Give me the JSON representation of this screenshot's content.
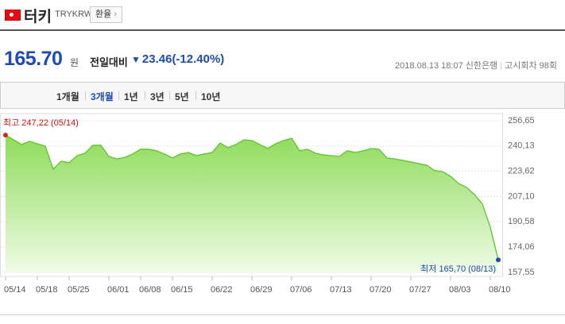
{
  "header": {
    "title": "터키",
    "code": "TRYKRW",
    "button": "환율"
  },
  "quote": {
    "price": "165.70",
    "unit": "원",
    "change_label": "전일대비",
    "change": "23.46",
    "change_pct": "(-12.40%)",
    "date": "2018.08.13 18:07",
    "bank": "신한은행",
    "round": "고시회차 98회"
  },
  "tabs": {
    "items": [
      "1개월",
      "3개월",
      "1년",
      "3년",
      "5년",
      "10년"
    ],
    "active": "3개월"
  },
  "chart_data": {
    "type": "area",
    "color": "#5cc32a",
    "grid": true,
    "categories": [
      "05/14",
      null,
      null,
      null,
      "05/18",
      null,
      null,
      null,
      "05/25",
      null,
      null,
      null,
      null,
      "06/01",
      null,
      null,
      null,
      "06/08",
      null,
      null,
      null,
      "06/15",
      null,
      null,
      null,
      null,
      "06/22",
      null,
      null,
      null,
      null,
      "06/29",
      null,
      null,
      null,
      null,
      "07/06",
      null,
      null,
      null,
      null,
      "07/13",
      null,
      null,
      null,
      null,
      "07/20",
      null,
      null,
      null,
      null,
      "07/27",
      null,
      null,
      null,
      null,
      "08/03",
      null,
      null,
      null,
      null,
      "08/10",
      null
    ],
    "values": [
      247.22,
      244.2,
      241.1,
      243.2,
      241.6,
      240.0,
      225.0,
      230.2,
      229.2,
      233.8,
      235.4,
      240.6,
      240.6,
      233.3,
      231.7,
      232.7,
      234.9,
      238.0,
      238.0,
      237.0,
      234.9,
      232.3,
      234.9,
      235.9,
      233.8,
      234.9,
      235.9,
      242.1,
      239.0,
      241.1,
      244.2,
      243.7,
      241.1,
      238.5,
      241.6,
      243.7,
      245.2,
      237.0,
      238.0,
      235.4,
      234.3,
      233.8,
      233.3,
      237.0,
      235.9,
      237.0,
      238.5,
      238.0,
      232.3,
      231.7,
      230.7,
      229.7,
      228.6,
      227.6,
      224.0,
      223.4,
      220.3,
      215.6,
      213.1,
      208.4,
      202.2,
      187.1,
      165.7
    ],
    "ylim": [
      157.55,
      256.65
    ],
    "yticks": [
      {
        "value": 157.55,
        "label": "157,55"
      },
      {
        "value": 174.06,
        "label": "174,06"
      },
      {
        "value": 190.58,
        "label": "190,58"
      },
      {
        "value": 207.1,
        "label": "207,10"
      },
      {
        "value": 223.62,
        "label": "223,62"
      },
      {
        "value": 240.13,
        "label": "240,13"
      },
      {
        "value": 256.65,
        "label": "256,65"
      }
    ],
    "annotations": {
      "high": "최고 247,22 (05/14)",
      "low": "최저 165,70 (08/13)"
    }
  }
}
